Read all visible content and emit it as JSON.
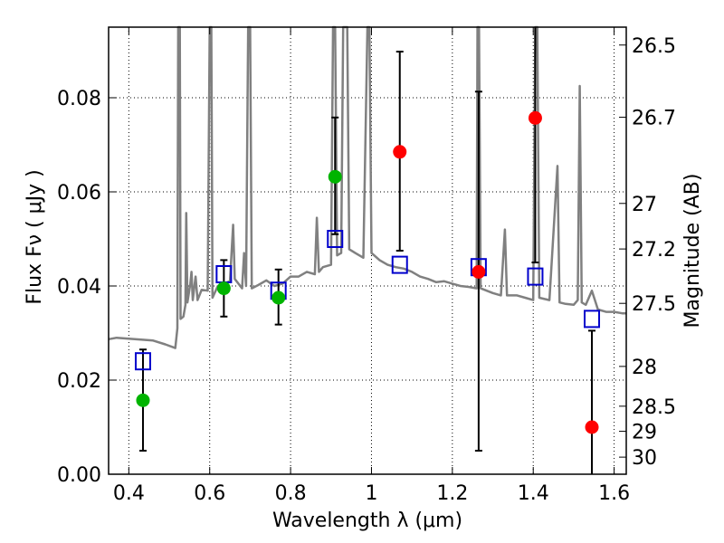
{
  "chart_data": {
    "type": "scatter",
    "xlabel": "Wavelength  λ (μm)",
    "ylabel": "Flux  Fν  ( μJy )",
    "y2label": "Magnitude (AB)",
    "xlim": [
      0.35,
      1.63
    ],
    "ylim": [
      0.0,
      0.095
    ],
    "grid": true,
    "x_ticks": [
      "0.4",
      "0.6",
      "0.8",
      "1",
      "1.2",
      "1.4",
      "1.6"
    ],
    "y_ticks": [
      "0.00",
      "0.02",
      "0.04",
      "0.06",
      "0.08"
    ],
    "mag_ticks": [
      "26.5",
      "26.7",
      "27",
      "27.2",
      "27.5",
      "28",
      "28.5",
      "29",
      "30"
    ],
    "colors": {
      "model": "#808080",
      "detection": "#00b400",
      "upper": "#ff0000",
      "model_phot": "#0000cc",
      "errorbar": "#000000"
    },
    "series": [
      {
        "role": "model_photometry",
        "marker": "open-square",
        "points": [
          {
            "x": 0.435,
            "y": 0.024
          },
          {
            "x": 0.635,
            "y": 0.0425
          },
          {
            "x": 0.77,
            "y": 0.039
          },
          {
            "x": 0.91,
            "y": 0.05
          },
          {
            "x": 1.07,
            "y": 0.0445
          },
          {
            "x": 1.265,
            "y": 0.044
          },
          {
            "x": 1.405,
            "y": 0.042
          },
          {
            "x": 1.545,
            "y": 0.033
          }
        ]
      },
      {
        "role": "detections",
        "marker": "filled-circle",
        "points": [
          {
            "x": 0.435,
            "y": 0.0157,
            "ylo": 0.005,
            "yhi": 0.0265
          },
          {
            "x": 0.635,
            "y": 0.0395,
            "ylo": 0.0335,
            "yhi": 0.0455
          },
          {
            "x": 0.77,
            "y": 0.0375,
            "ylo": 0.0318,
            "yhi": 0.0435
          },
          {
            "x": 0.91,
            "y": 0.0632,
            "ylo": 0.051,
            "yhi": 0.0758
          }
        ]
      },
      {
        "role": "low_significance",
        "marker": "filled-circle",
        "points": [
          {
            "x": 1.07,
            "y": 0.0685,
            "ylo": 0.0475,
            "yhi": 0.0898
          },
          {
            "x": 1.265,
            "y": 0.043,
            "ylo": 0.005,
            "yhi": 0.0813
          },
          {
            "x": 1.405,
            "y": 0.0757,
            "ylo": 0.045,
            "yhi": 0.095
          },
          {
            "x": 1.545,
            "y": 0.01,
            "ylo": 0.0,
            "yhi": 0.0305
          }
        ]
      }
    ],
    "model_spectrum": [
      [
        0.35,
        0.0287
      ],
      [
        0.37,
        0.029
      ],
      [
        0.4,
        0.0288
      ],
      [
        0.43,
        0.0286
      ],
      [
        0.46,
        0.0284
      ],
      [
        0.49,
        0.0276
      ],
      [
        0.515,
        0.0268
      ],
      [
        0.52,
        0.031
      ],
      [
        0.522,
        0.095
      ],
      [
        0.526,
        0.095
      ],
      [
        0.528,
        0.033
      ],
      [
        0.535,
        0.0335
      ],
      [
        0.54,
        0.036
      ],
      [
        0.542,
        0.0555
      ],
      [
        0.545,
        0.0365
      ],
      [
        0.552,
        0.0405
      ],
      [
        0.555,
        0.043
      ],
      [
        0.558,
        0.037
      ],
      [
        0.565,
        0.042
      ],
      [
        0.57,
        0.037
      ],
      [
        0.58,
        0.0392
      ],
      [
        0.595,
        0.039
      ],
      [
        0.6,
        0.095
      ],
      [
        0.604,
        0.095
      ],
      [
        0.607,
        0.0375
      ],
      [
        0.62,
        0.04
      ],
      [
        0.65,
        0.041
      ],
      [
        0.658,
        0.053
      ],
      [
        0.662,
        0.0415
      ],
      [
        0.68,
        0.0395
      ],
      [
        0.685,
        0.047
      ],
      [
        0.69,
        0.04
      ],
      [
        0.695,
        0.095
      ],
      [
        0.7,
        0.095
      ],
      [
        0.704,
        0.0395
      ],
      [
        0.72,
        0.0402
      ],
      [
        0.74,
        0.0412
      ],
      [
        0.76,
        0.04
      ],
      [
        0.78,
        0.0405
      ],
      [
        0.8,
        0.042
      ],
      [
        0.82,
        0.042
      ],
      [
        0.84,
        0.043
      ],
      [
        0.86,
        0.0425
      ],
      [
        0.865,
        0.0545
      ],
      [
        0.87,
        0.043
      ],
      [
        0.88,
        0.044
      ],
      [
        0.9,
        0.0445
      ],
      [
        0.905,
        0.095
      ],
      [
        0.91,
        0.095
      ],
      [
        0.915,
        0.0465
      ],
      [
        0.925,
        0.047
      ],
      [
        0.93,
        0.095
      ],
      [
        0.94,
        0.095
      ],
      [
        0.945,
        0.0478
      ],
      [
        0.96,
        0.047
      ],
      [
        0.98,
        0.046
      ],
      [
        0.99,
        0.095
      ],
      [
        0.995,
        0.095
      ],
      [
        1.0,
        0.047
      ],
      [
        1.02,
        0.0455
      ],
      [
        1.04,
        0.0445
      ],
      [
        1.06,
        0.044
      ],
      [
        1.08,
        0.0437
      ],
      [
        1.1,
        0.043
      ],
      [
        1.12,
        0.042
      ],
      [
        1.14,
        0.0415
      ],
      [
        1.16,
        0.0408
      ],
      [
        1.18,
        0.041
      ],
      [
        1.2,
        0.0405
      ],
      [
        1.22,
        0.04
      ],
      [
        1.24,
        0.0398
      ],
      [
        1.26,
        0.0395
      ],
      [
        1.262,
        0.095
      ],
      [
        1.266,
        0.095
      ],
      [
        1.27,
        0.0395
      ],
      [
        1.3,
        0.0385
      ],
      [
        1.32,
        0.038
      ],
      [
        1.33,
        0.052
      ],
      [
        1.335,
        0.038
      ],
      [
        1.36,
        0.038
      ],
      [
        1.38,
        0.0375
      ],
      [
        1.4,
        0.037
      ],
      [
        1.405,
        0.095
      ],
      [
        1.41,
        0.095
      ],
      [
        1.415,
        0.0375
      ],
      [
        1.44,
        0.037
      ],
      [
        1.46,
        0.0655
      ],
      [
        1.465,
        0.0365
      ],
      [
        1.48,
        0.0362
      ],
      [
        1.5,
        0.036
      ],
      [
        1.51,
        0.037
      ],
      [
        1.515,
        0.0825
      ],
      [
        1.52,
        0.0365
      ],
      [
        1.53,
        0.036
      ],
      [
        1.545,
        0.039
      ],
      [
        1.56,
        0.035
      ],
      [
        1.58,
        0.0345
      ],
      [
        1.6,
        0.0345
      ],
      [
        1.62,
        0.0342
      ],
      [
        1.63,
        0.0342
      ]
    ]
  }
}
